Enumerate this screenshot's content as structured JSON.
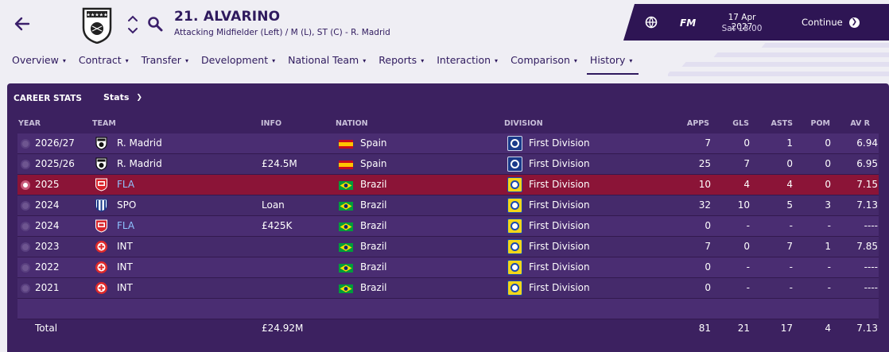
{
  "header": {
    "player_name": "21. ALVARINO",
    "player_sub": "Attacking Midfielder (Left) / M (L), ST (C) - R. Madrid"
  },
  "topbar": {
    "logo": "FM",
    "date": "17 Apr 2027",
    "time": "Sat 13:00",
    "continue_label": "Continue"
  },
  "tabs": [
    {
      "label": "Overview"
    },
    {
      "label": "Contract"
    },
    {
      "label": "Transfer"
    },
    {
      "label": "Development"
    },
    {
      "label": "National Team"
    },
    {
      "label": "Reports"
    },
    {
      "label": "Interaction"
    },
    {
      "label": "Comparison"
    },
    {
      "label": "History",
      "active": true
    }
  ],
  "panel": {
    "title": "CAREER STATS",
    "dropdown_label": "Stats"
  },
  "columns": {
    "year": "YEAR",
    "team": "TEAM",
    "info": "INFO",
    "nation": "NATION",
    "division": "DIVISION",
    "apps": "APPS",
    "gls": "GLS",
    "asts": "ASTS",
    "pom": "POM",
    "avr": "AV R"
  },
  "rows": [
    {
      "year": "2026/27",
      "team": "R. Madrid",
      "team_link": false,
      "badge": "rmadrid",
      "info": "",
      "nation": "Spain",
      "flag": "spain",
      "division": "First Division",
      "div_logo": "es",
      "apps": "7",
      "gls": "0",
      "asts": "1",
      "pom": "0",
      "avr": "6.94"
    },
    {
      "year": "2025/26",
      "team": "R. Madrid",
      "team_link": false,
      "badge": "rmadrid",
      "info": "£24.5M",
      "nation": "Spain",
      "flag": "spain",
      "division": "First Division",
      "div_logo": "es",
      "apps": "25",
      "gls": "7",
      "asts": "0",
      "pom": "0",
      "avr": "6.95"
    },
    {
      "year": "2025",
      "team": "FLA",
      "team_link": true,
      "badge": "fla",
      "info": "",
      "nation": "Brazil",
      "flag": "brazil",
      "division": "First Division",
      "div_logo": "br",
      "apps": "10",
      "gls": "4",
      "asts": "4",
      "pom": "0",
      "avr": "7.15",
      "selected": true
    },
    {
      "year": "2024",
      "team": "SPO",
      "team_link": false,
      "badge": "spo",
      "info": "Loan",
      "nation": "Brazil",
      "flag": "brazil",
      "division": "First Division",
      "div_logo": "br",
      "apps": "32",
      "gls": "10",
      "asts": "5",
      "pom": "3",
      "avr": "7.13"
    },
    {
      "year": "2024",
      "team": "FLA",
      "team_link": true,
      "badge": "fla",
      "info": "£425K",
      "nation": "Brazil",
      "flag": "brazil",
      "division": "First Division",
      "div_logo": "br",
      "apps": "0",
      "gls": "-",
      "asts": "-",
      "pom": "-",
      "avr": "----"
    },
    {
      "year": "2023",
      "team": "INT",
      "team_link": false,
      "badge": "int",
      "info": "",
      "nation": "Brazil",
      "flag": "brazil",
      "division": "First Division",
      "div_logo": "br",
      "apps": "7",
      "gls": "0",
      "asts": "7",
      "pom": "1",
      "avr": "7.85"
    },
    {
      "year": "2022",
      "team": "INT",
      "team_link": false,
      "badge": "int",
      "info": "",
      "nation": "Brazil",
      "flag": "brazil",
      "division": "First Division",
      "div_logo": "br",
      "apps": "0",
      "gls": "-",
      "asts": "-",
      "pom": "-",
      "avr": "----"
    },
    {
      "year": "2021",
      "team": "INT",
      "team_link": false,
      "badge": "int",
      "info": "",
      "nation": "Brazil",
      "flag": "brazil",
      "division": "First Division",
      "div_logo": "br",
      "apps": "0",
      "gls": "-",
      "asts": "-",
      "pom": "-",
      "avr": "----"
    }
  ],
  "total": {
    "label": "Total",
    "info": "£24.92M",
    "apps": "81",
    "gls": "21",
    "asts": "17",
    "pom": "4",
    "avr": "7.13"
  },
  "colors": {
    "panel_bg": "#3c2160",
    "selected_row": "#8b1437",
    "header_bar": "#2e1554",
    "link": "#8ec3ff"
  }
}
